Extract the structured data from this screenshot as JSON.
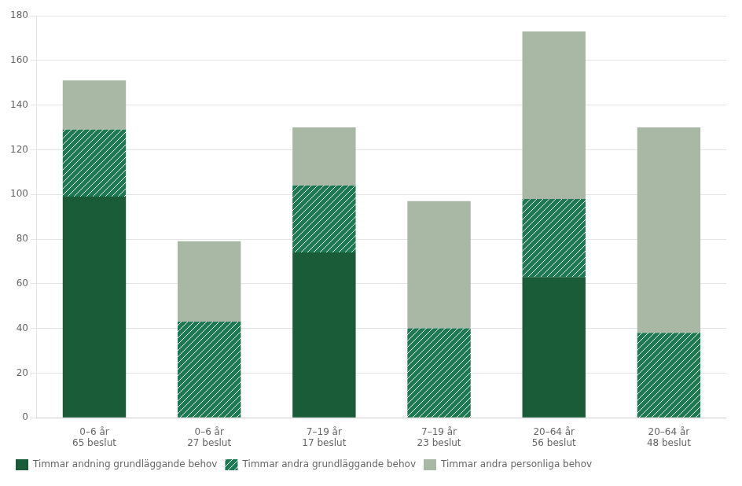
{
  "chart_data": {
    "type": "bar",
    "stacked": true,
    "categories": [
      "0–6 år\n65 beslut",
      "0–6 år\n27 beslut",
      "7–19 år\n17 beslut",
      "7–19 år\n23 beslut",
      "20–64 år\n56 beslut",
      "20–64 år\n48 beslut"
    ],
    "series": [
      {
        "name": "Timmar andning grundläggande behov",
        "color": "#1a5c38",
        "values": [
          99,
          0,
          74,
          0,
          63,
          0
        ]
      },
      {
        "name": "Timmar andra grundläggande behov",
        "color": "#1a7a50",
        "values": [
          30,
          43,
          30,
          40,
          35,
          38
        ]
      },
      {
        "name": "Timmar andra personliga behov",
        "color": "#a8b8a4",
        "values": [
          22,
          36,
          26,
          57,
          75,
          92
        ]
      }
    ],
    "ylim": [
      0,
      180
    ],
    "yticks": [
      0,
      20,
      40,
      60,
      80,
      100,
      120,
      140,
      160,
      180
    ],
    "grid": true,
    "legend": "lower left"
  }
}
